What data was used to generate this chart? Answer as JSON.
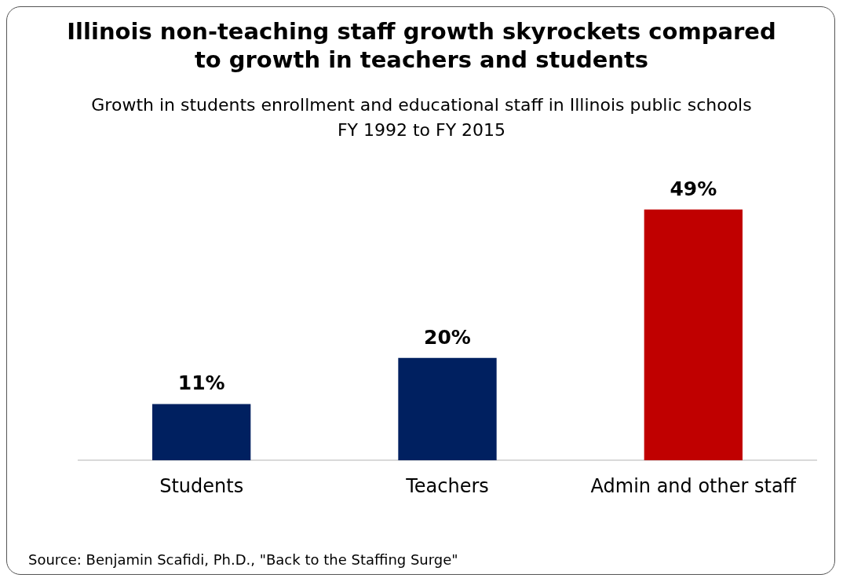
{
  "chart_data": {
    "type": "bar",
    "title": "Illinois non-teaching staff growth skyrockets compared\nto growth in teachers and students",
    "subtitle": "Growth in students enrollment and educational staff in Illinois public schools\nFY 1992 to FY 2015",
    "categories": [
      "Students",
      "Teachers",
      "Admin and other staff"
    ],
    "values": [
      11,
      20,
      49
    ],
    "colors": [
      "#002060",
      "#002060",
      "#c00000"
    ],
    "value_labels": [
      "11%",
      "20%",
      "49%"
    ],
    "grid": false,
    "legend": false,
    "annotations": [
      "Source: Benjamin Scafidi, Ph.D., \"Back to the Staffing Surge\""
    ]
  }
}
